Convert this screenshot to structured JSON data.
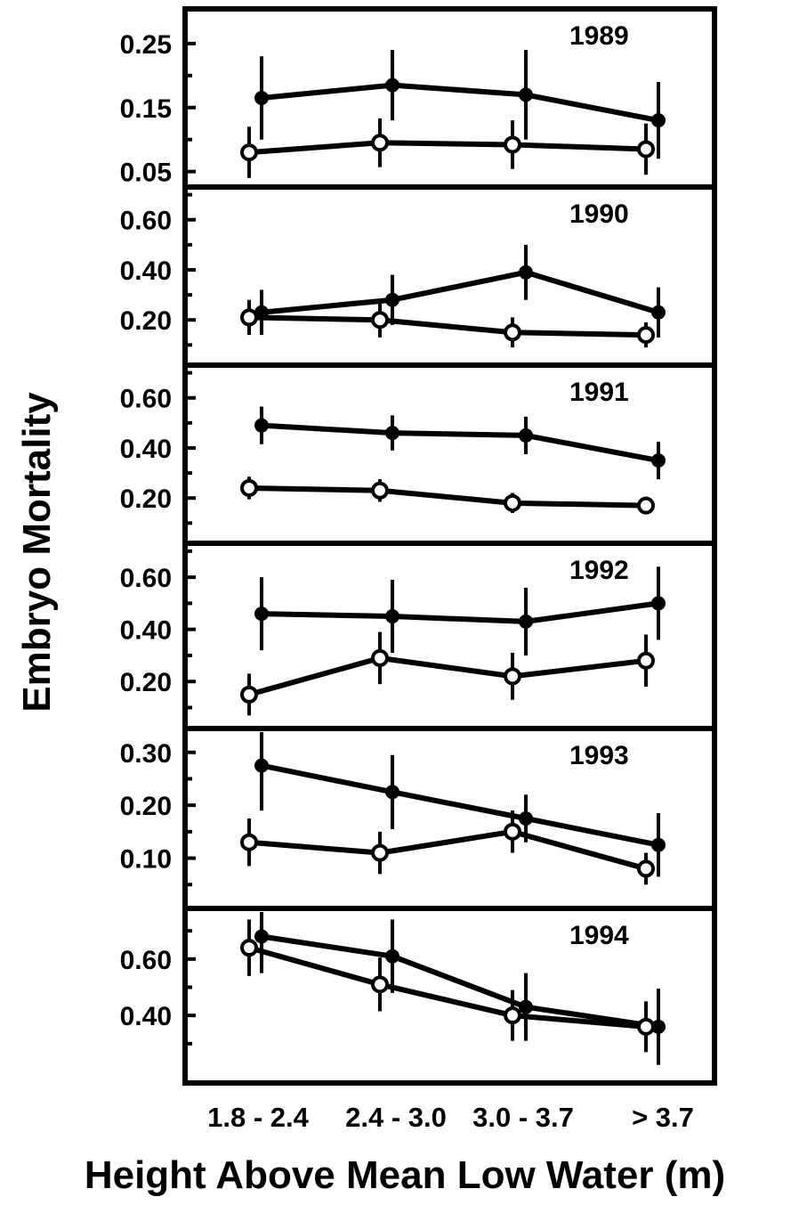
{
  "chart_data": {
    "type": "line",
    "ylabel": "Embryo Mortality",
    "xlabel": "Height Above Mean Low Water (m)",
    "categories": [
      "1.8 - 2.4",
      "2.4 - 3.0",
      "3.0 - 3.7",
      "> 3.7"
    ],
    "panels": [
      {
        "year": "1989",
        "ylim": [
          0.03,
          0.3
        ],
        "yticks": [
          0.05,
          0.15,
          0.25
        ],
        "ytick_labels": [
          "0.05",
          "0.15",
          "0.25"
        ],
        "series": [
          {
            "marker": "filled",
            "values": [
              0.165,
              0.185,
              0.17,
              0.13
            ],
            "errors": [
              0.065,
              0.055,
              0.07,
              0.06
            ]
          },
          {
            "marker": "open",
            "values": [
              0.08,
              0.095,
              0.092,
              0.085
            ],
            "errors": [
              0.04,
              0.038,
              0.038,
              0.04
            ]
          }
        ]
      },
      {
        "year": "1990",
        "ylim": [
          0.03,
          0.72
        ],
        "yticks": [
          0.2,
          0.4,
          0.6
        ],
        "ytick_labels": [
          "0.20",
          "0.40",
          "0.60"
        ],
        "series": [
          {
            "marker": "filled",
            "values": [
              0.23,
              0.28,
              0.39,
              0.23
            ],
            "errors": [
              0.09,
              0.1,
              0.11,
              0.1
            ]
          },
          {
            "marker": "open",
            "values": [
              0.21,
              0.2,
              0.15,
              0.14
            ],
            "errors": [
              0.07,
              0.07,
              0.06,
              0.05
            ]
          }
        ]
      },
      {
        "year": "1991",
        "ylim": [
          0.03,
          0.72
        ],
        "yticks": [
          0.2,
          0.4,
          0.6
        ],
        "ytick_labels": [
          "0.20",
          "0.40",
          "0.60"
        ],
        "series": [
          {
            "marker": "filled",
            "values": [
              0.49,
              0.46,
              0.45,
              0.35
            ],
            "errors": [
              0.075,
              0.07,
              0.075,
              0.075
            ]
          },
          {
            "marker": "open",
            "values": [
              0.24,
              0.23,
              0.18,
              0.17
            ],
            "errors": [
              0.045,
              0.045,
              0.04,
              0.035
            ]
          }
        ]
      },
      {
        "year": "1992",
        "ylim": [
          0.03,
          0.72
        ],
        "yticks": [
          0.2,
          0.4,
          0.6
        ],
        "ytick_labels": [
          "0.20",
          "0.40",
          "0.60"
        ],
        "series": [
          {
            "marker": "filled",
            "values": [
              0.46,
              0.45,
              0.43,
              0.5
            ],
            "errors": [
              0.14,
              0.14,
              0.13,
              0.14
            ]
          },
          {
            "marker": "open",
            "values": [
              0.15,
              0.29,
              0.22,
              0.28
            ],
            "errors": [
              0.08,
              0.1,
              0.09,
              0.1
            ]
          }
        ]
      },
      {
        "year": "1993",
        "ylim": [
          0.01,
          0.34
        ],
        "yticks": [
          0.1,
          0.2,
          0.3
        ],
        "ytick_labels": [
          "0.10",
          "0.20",
          "0.30"
        ],
        "series": [
          {
            "marker": "filled",
            "values": [
              0.275,
              0.225,
              0.175,
              0.125
            ],
            "errors": [
              0.085,
              0.07,
              0.045,
              0.06
            ]
          },
          {
            "marker": "open",
            "values": [
              0.13,
              0.11,
              0.15,
              0.08
            ],
            "errors": [
              0.045,
              0.04,
              0.04,
              0.03
            ]
          }
        ]
      },
      {
        "year": "1994",
        "ylim": [
          0.17,
          0.77
        ],
        "yticks": [
          0.4,
          0.6
        ],
        "ytick_labels": [
          "0.40",
          "0.60"
        ],
        "series": [
          {
            "marker": "filled",
            "values": [
              0.68,
              0.61,
              0.43,
              0.36
            ],
            "errors": [
              0.13,
              0.13,
              0.12,
              0.135
            ]
          },
          {
            "marker": "open",
            "values": [
              0.64,
              0.51,
              0.4,
              0.36
            ],
            "errors": [
              0.1,
              0.095,
              0.09,
              0.09
            ]
          }
        ]
      }
    ]
  }
}
